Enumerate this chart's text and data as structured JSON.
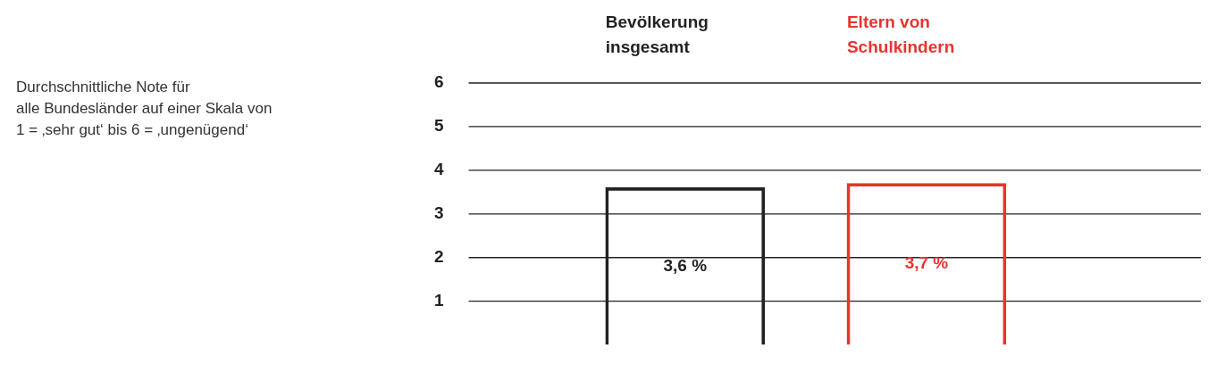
{
  "chart_data": {
    "type": "bar",
    "title": "Durchschnittliche Note für\nalle Bundesländer auf einer Skala von\n1 = ‚sehr gut‘ bis 6 = ‚ungenügend‘",
    "categories": [
      "Bevölkerung insgesamt",
      "Eltern von Schulkindern"
    ],
    "values": [
      3.6,
      3.7
    ],
    "colors": [
      "#222222",
      "#e8332f"
    ],
    "value_labels": [
      "3,6 %",
      "3,7 %"
    ],
    "ylim": [
      0,
      6
    ],
    "yticks": [
      1,
      2,
      3,
      4,
      5,
      6
    ],
    "grid": "y",
    "legend": false
  }
}
